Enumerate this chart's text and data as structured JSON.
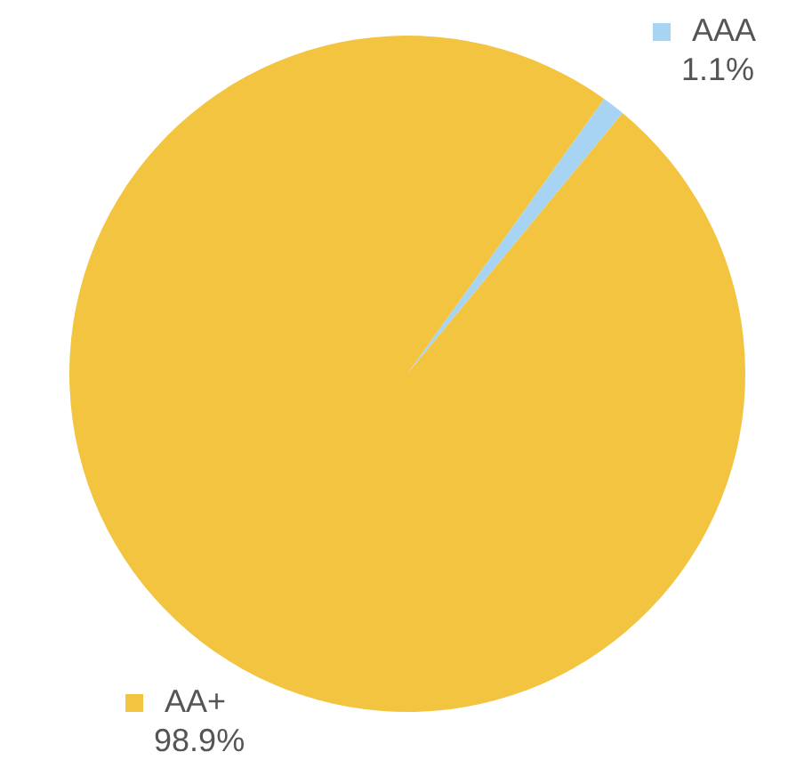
{
  "chart_data": {
    "type": "pie",
    "categories": [
      "AAA",
      "AA+"
    ],
    "values": [
      1.1,
      98.9
    ],
    "colors": [
      "#a6d4f2",
      "#f2c440"
    ],
    "value_labels": [
      "1.1%",
      "98.9%"
    ],
    "legend": "top right"
  }
}
